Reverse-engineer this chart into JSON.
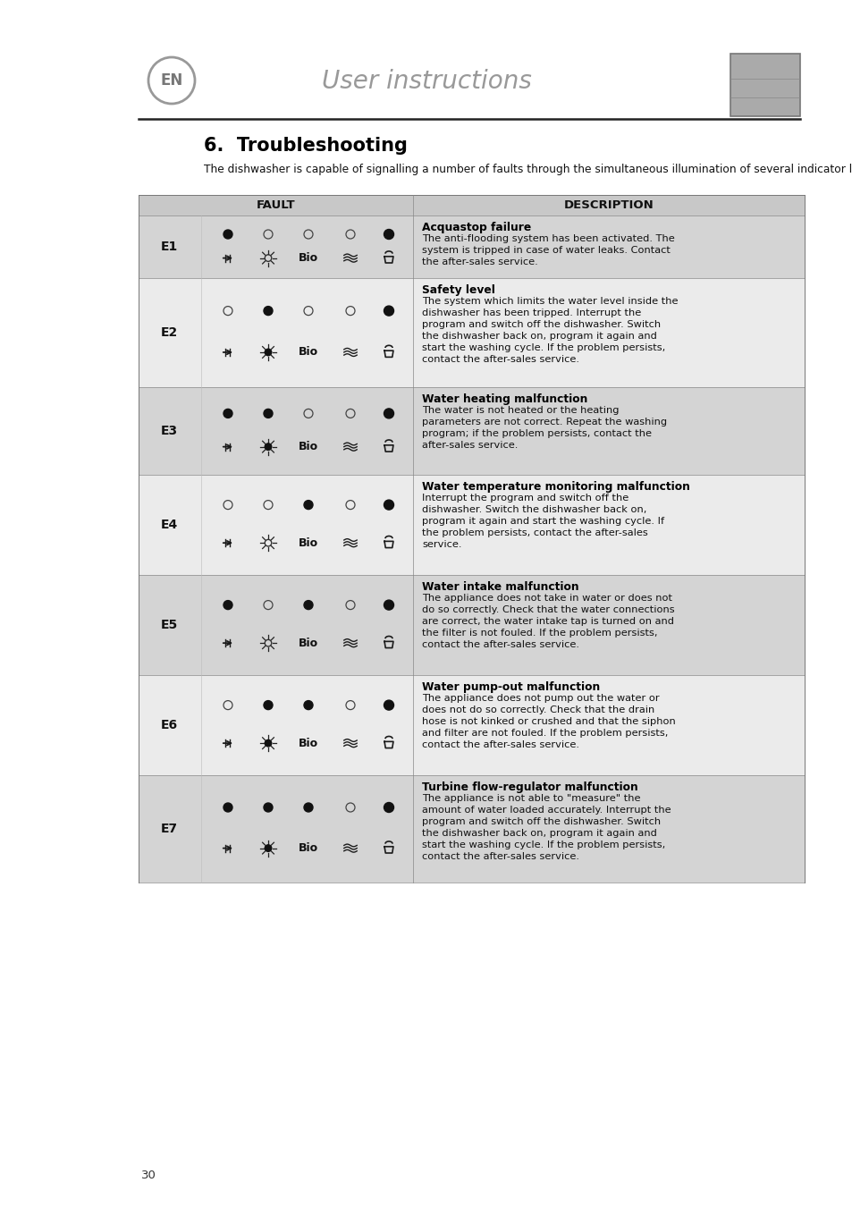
{
  "page_bg": "#ffffff",
  "header_text": "User instructions",
  "en_label": "EN",
  "section_title": "6.  Troubleshooting",
  "intro": "The dishwasher is capable of signalling a number of faults through the simultaneous illumination of several indicator lights, with the following meanings:",
  "col_fault": "FAULT",
  "col_desc": "DESCRIPTION",
  "page_num": "30",
  "header_bg": "#c8c8c8",
  "row_colors": [
    "#d4d4d4",
    "#ebebeb",
    "#d4d4d4",
    "#ebebeb",
    "#d4d4d4",
    "#ebebeb",
    "#d4d4d4"
  ],
  "errors": [
    {
      "code": "E1",
      "indicators": [
        1,
        0,
        0,
        0,
        1
      ],
      "fault_title": "Acquastop failure",
      "fault_desc": "The anti-flooding system has been activated. The\nsystem is tripped in case of water leaks. Contact\nthe after-sales service."
    },
    {
      "code": "E2",
      "indicators": [
        0,
        1,
        0,
        0,
        1
      ],
      "fault_title": "Safety level",
      "fault_desc": "The system which limits the water level inside the\ndishwasher has been tripped. Interrupt the\nprogram and switch off the dishwasher. Switch\nthe dishwasher back on, program it again and\nstart the washing cycle. If the problem persists,\ncontact the after-sales service."
    },
    {
      "code": "E3",
      "indicators": [
        1,
        1,
        0,
        0,
        1
      ],
      "fault_title": "Water heating malfunction",
      "fault_desc": "The water is not heated or the heating\nparameters are not correct. Repeat the washing\nprogram; if the problem persists, contact the\nafter-sales service."
    },
    {
      "code": "E4",
      "indicators": [
        0,
        0,
        1,
        0,
        1
      ],
      "fault_title": "Water temperature monitoring malfunction",
      "fault_desc": "Interrupt the program and switch off the\ndishwasher. Switch the dishwasher back on,\nprogram it again and start the washing cycle. If\nthe problem persists, contact the after-sales\nservice."
    },
    {
      "code": "E5",
      "indicators": [
        1,
        0,
        1,
        0,
        1
      ],
      "fault_title": "Water intake malfunction",
      "fault_desc": "The appliance does not take in water or does not\ndo so correctly. Check that the water connections\nare correct, the water intake tap is turned on and\nthe filter is not fouled. If the problem persists,\ncontact the after-sales service."
    },
    {
      "code": "E6",
      "indicators": [
        0,
        1,
        1,
        0,
        1
      ],
      "fault_title": "Water pump-out malfunction",
      "fault_desc": "The appliance does not pump out the water or\ndoes not do so correctly. Check that the drain\nhose is not kinked or crushed and that the siphon\nand filter are not fouled. If the problem persists,\ncontact the after-sales service."
    },
    {
      "code": "E7",
      "indicators": [
        1,
        1,
        1,
        0,
        1
      ],
      "fault_title": "Turbine flow-regulator malfunction",
      "fault_desc": "The appliance is not able to \"measure\" the\namount of water loaded accurately. Interrupt the\nprogram and switch off the dishwasher. Switch\nthe dishwasher back on, program it again and\nstart the washing cycle. If the problem persists,\ncontact the after-sales service."
    }
  ]
}
